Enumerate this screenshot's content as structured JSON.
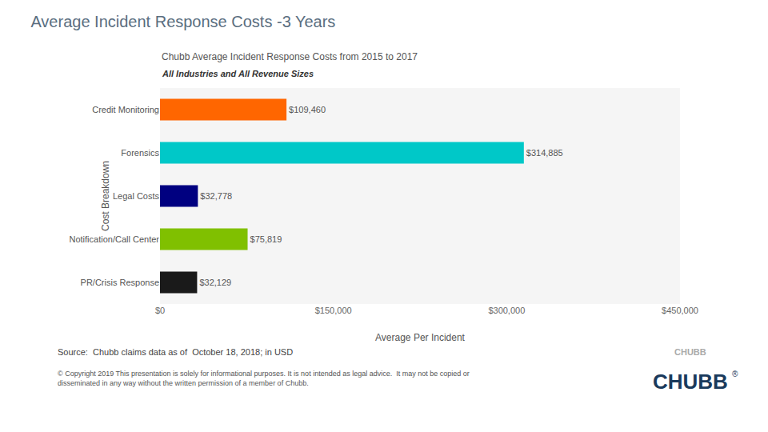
{
  "chart_data": {
    "type": "bar",
    "orientation": "horizontal",
    "title": "Average Incident Response Costs -3 Years",
    "subtitle": "Chubb Average Incident Response Costs from 2015 to 2017",
    "annotations": [
      "All Industries and All Revenue Sizes",
      "Source:  Chubb claims data as of  October 18, 2018; in USD",
      "© Copyright 2019 This presentation is solely for informational purposes. It is not intended as legal advice.  It may not be copied or\ndisseminated in any way without the written permission of a member of Chubb.",
      "CHUBB",
      "CHUBB",
      "®"
    ],
    "categories": [
      "PR/Crisis Response",
      "Notification/Call Center",
      "Legal Costs",
      "Forensics",
      "Credit Monitoring"
    ],
    "values": [
      32129,
      75819,
      32778,
      314885,
      109460
    ],
    "value_labels": [
      "$32,129",
      "$75,819",
      "$32,778",
      "$314,885",
      "$109,460"
    ],
    "colors": [
      "#1A1A1A",
      "#80C000",
      "#000080",
      "#00C8C8",
      "#FF6600"
    ],
    "data_labels": true,
    "xlabel": "Average Per Incident",
    "ylabel": "Cost Breakdown",
    "xlim": [
      0,
      450000
    ],
    "xticks": [
      {
        "value": 0,
        "label": "$0"
      },
      {
        "value": 150000,
        "label": "$150,000"
      },
      {
        "value": 300000,
        "label": "$300,000"
      },
      {
        "value": 450000,
        "label": "$450,000"
      }
    ],
    "grid": false
  }
}
